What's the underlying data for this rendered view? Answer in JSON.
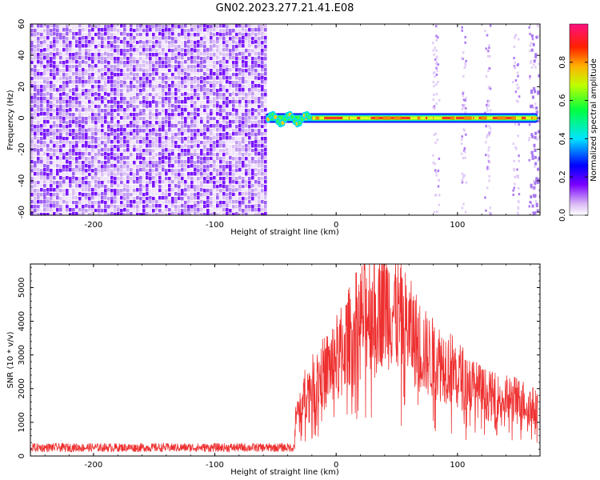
{
  "title": "GN02.2023.277.21.41.E08",
  "chart_data": [
    {
      "type": "heatmap",
      "xlabel": "Height of straight line (km)",
      "ylabel": "Frequency (Hz)",
      "xlim": [
        -252,
        168
      ],
      "ylim": [
        -62,
        60
      ],
      "xticks": [
        -200,
        -100,
        0,
        100
      ],
      "yticks": [
        -60,
        -40,
        -20,
        0,
        20,
        40,
        60
      ],
      "colorbar": {
        "label": "Normalized spectral amplitude",
        "range": [
          0.0,
          1.0
        ],
        "ticks": [
          0.0,
          0.2,
          0.4,
          0.6,
          0.8
        ]
      },
      "regions": [
        {
          "x_range": [
            -252,
            -58
          ],
          "freq_range": [
            -62,
            60
          ],
          "amplitude": "low (0.1–0.25), broadband noise"
        },
        {
          "x_range": [
            -58,
            -20
          ],
          "freq_range": [
            -5,
            4
          ],
          "amplitude": "0.4–0.8, narrow signal"
        },
        {
          "x_range": [
            -20,
            165
          ],
          "freq_range": [
            -1,
            1
          ],
          "amplitude": "0.8–1.0, narrow signal near 0 Hz"
        }
      ]
    },
    {
      "type": "line",
      "xlabel": "Height of straight line (km)",
      "ylabel": "SNR (10 * v/v)",
      "xlim": [
        -252,
        168
      ],
      "ylim": [
        0,
        5700
      ],
      "xticks": [
        -200,
        -100,
        0,
        100
      ],
      "yticks": [
        0,
        1000,
        2000,
        3000,
        4000,
        5000
      ],
      "color": "#ee3030",
      "x": [
        -252,
        -200,
        -150,
        -100,
        -60,
        -35,
        -33,
        -25,
        -15,
        -5,
        5,
        15,
        25,
        35,
        45,
        55,
        65,
        75,
        85,
        95,
        105,
        115,
        125,
        135,
        145,
        155,
        165
      ],
      "y": [
        250,
        250,
        250,
        250,
        250,
        250,
        1200,
        1900,
        2300,
        2700,
        3200,
        3800,
        4300,
        4600,
        4400,
        4000,
        3500,
        3000,
        2800,
        2600,
        2300,
        2000,
        1800,
        1700,
        1700,
        1600,
        1400
      ]
    }
  ]
}
